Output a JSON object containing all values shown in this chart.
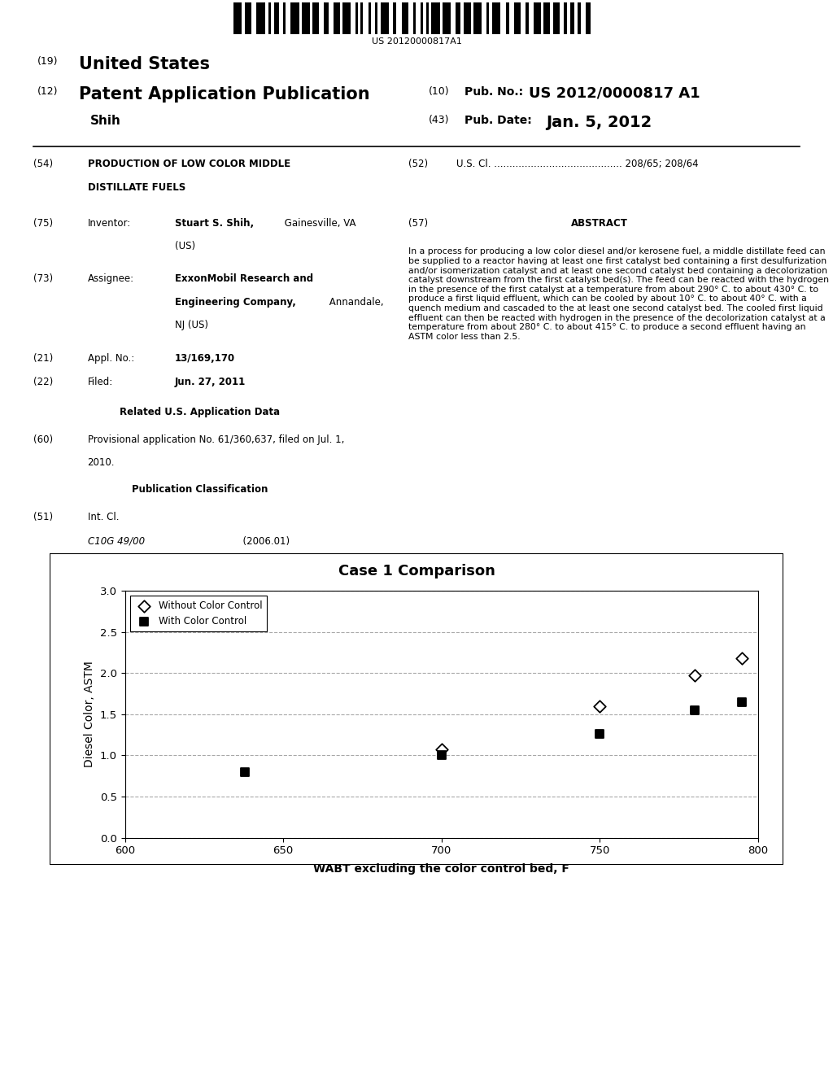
{
  "title": "Case 1 Comparison",
  "xlabel": "WABT excluding the color control bed, F",
  "ylabel": "Diesel Color, ASTM",
  "xlim": [
    600,
    800
  ],
  "ylim": [
    0.0,
    3.0
  ],
  "xticks": [
    600,
    650,
    700,
    750,
    800
  ],
  "yticks": [
    0.0,
    0.5,
    1.0,
    1.5,
    2.0,
    2.5,
    3.0
  ],
  "series1_label": "Without Color Control",
  "series1_x": [
    700,
    750,
    780,
    795
  ],
  "series1_y": [
    1.07,
    1.6,
    1.97,
    2.18
  ],
  "series2_label": "With Color Control",
  "series2_x": [
    638,
    700,
    750,
    780,
    795
  ],
  "series2_y": [
    0.8,
    1.0,
    1.26,
    1.55,
    1.65
  ],
  "bg_color": "#ffffff",
  "grid_color": "#999999",
  "plot_bg": "#ffffff",
  "border_color": "#000000",
  "patent_number": "US 20120000817A1",
  "abstract_text": "In a process for producing a low color diesel and/or kerosene fuel, a middle distillate feed can be supplied to a reactor having at least one first catalyst bed containing a first desulfurization and/or isomerization catalyst and at least one second catalyst bed containing a decolorization catalyst downstream from the first catalyst bed(s). The feed can be reacted with the hydrogen in the presence of the first catalyst at a temperature from about 290° C. to about 430° C. to produce a first liquid effluent, which can be cooled by about 10° C. to about 40° C. with a quench medium and cascaded to the at least one second catalyst bed. The cooled first liquid effluent can then be reacted with hydrogen in the presence of the decolorization catalyst at a temperature from about 280° C. to about 415° C. to produce a second effluent having an ASTM color less than 2.5."
}
